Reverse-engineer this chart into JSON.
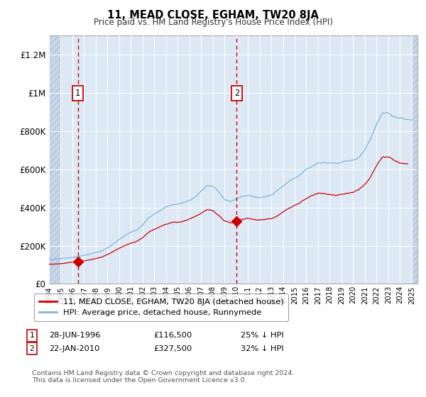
{
  "title": "11, MEAD CLOSE, EGHAM, TW20 8JA",
  "subtitle": "Price paid vs. HM Land Registry's House Price Index (HPI)",
  "legend_entry1": "11, MEAD CLOSE, EGHAM, TW20 8JA (detached house)",
  "legend_entry2": "HPI: Average price, detached house, Runnymede",
  "footnote": "Contains HM Land Registry data © Crown copyright and database right 2024.\nThis data is licensed under the Open Government Licence v3.0.",
  "sale1_date": "28-JUN-1996",
  "sale1_price": 116500,
  "sale1_label": "1",
  "sale1_pct": "25% ↓ HPI",
  "sale2_date": "22-JAN-2010",
  "sale2_price": 327500,
  "sale2_label": "2",
  "sale2_pct": "32% ↓ HPI",
  "hpi_color": "#7cb4e0",
  "price_color": "#cc0000",
  "vline_color": "#cc0000",
  "marker_color": "#cc0000",
  "background_plot": "#dce9f5",
  "background_hatch": "#c8d8e8",
  "grid_color": "#ffffff",
  "ylim_max": 1300000,
  "xlim_start": 1994.0,
  "xlim_end": 2025.5,
  "sale1_x": 1996.46,
  "sale2_x": 2010.04
}
